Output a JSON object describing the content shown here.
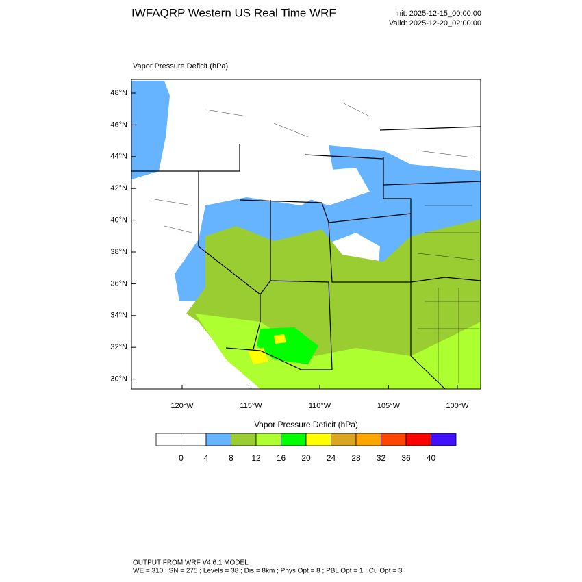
{
  "header": {
    "title": "IWFAQRP Western US Real Time WRF",
    "init": "Init: 2025-12-15_00:00:00",
    "valid": "Valid: 2025-12-20_02:00:00"
  },
  "map": {
    "label": "Vapor Pressure Deficit   (hPa)",
    "lat_ticks": [
      {
        "value": 48,
        "label": "48°N"
      },
      {
        "value": 46,
        "label": "46°N"
      },
      {
        "value": 44,
        "label": "44°N"
      },
      {
        "value": 42,
        "label": "42°N"
      },
      {
        "value": 40,
        "label": "40°N"
      },
      {
        "value": 38,
        "label": "38°N"
      },
      {
        "value": 36,
        "label": "36°N"
      },
      {
        "value": 34,
        "label": "34°N"
      },
      {
        "value": 32,
        "label": "32°N"
      },
      {
        "value": 30,
        "label": "30°N"
      }
    ],
    "lon_ticks": [
      {
        "value": -120,
        "label": "120°W"
      },
      {
        "value": -115,
        "label": "115°W"
      },
      {
        "value": -110,
        "label": "110°W"
      },
      {
        "value": -105,
        "label": "105°W"
      },
      {
        "value": -100,
        "label": "100°W"
      }
    ]
  },
  "colorbar": {
    "title": "Vapor Pressure Deficit  (hPa)",
    "levels": [
      0,
      4,
      8,
      12,
      16,
      20,
      24,
      28,
      32,
      36,
      40
    ],
    "colors": [
      "#ffffff",
      "#ffffff",
      "#66b3ff",
      "#9acd32",
      "#adff2f",
      "#00ff00",
      "#ffff00",
      "#daa520",
      "#ffa500",
      "#ff4500",
      "#ff0000",
      "#4010ff"
    ]
  },
  "footer": {
    "line1": "OUTPUT FROM WRF V4.6.1 MODEL",
    "line2": "WE = 310 ; SN = 275 ; Levels = 38 ; Dis = 8km ; Phys Opt = 8 ; PBL Opt = 1 ; Cu Opt = 3"
  }
}
